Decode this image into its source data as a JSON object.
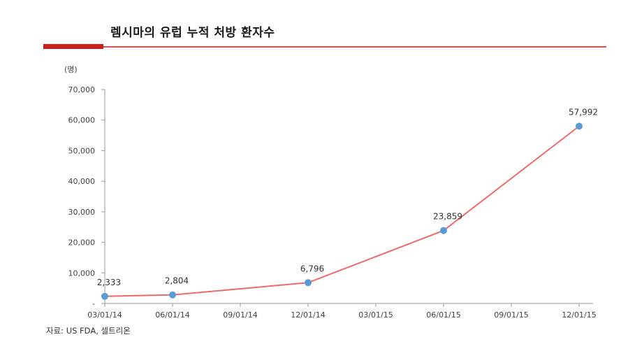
{
  "title": "렘시마의 유럽 누적 처방 환자수",
  "unit_label": "(명)",
  "source": "자료: US FDA, 셀트리온",
  "colors": {
    "line": "#f06a6a",
    "marker": "#5b9bd5",
    "title_rule": "#c9201c"
  },
  "chart_data": {
    "type": "line",
    "title": "렘시마의 유럽 누적 처방 환자수",
    "xlabel": "",
    "ylabel": "(명)",
    "categories": [
      "03/01/14",
      "06/01/14",
      "09/01/14",
      "12/01/14",
      "03/01/15",
      "06/01/15",
      "09/01/15",
      "12/01/15"
    ],
    "x_tick_labels": [
      "03/01/14",
      "06/01/14",
      "09/01/14",
      "12/01/14",
      "03/01/15",
      "06/01/15",
      "09/01/15",
      "12/01/15"
    ],
    "y_tick_labels": [
      "-",
      "10,000",
      "20,000",
      "30,000",
      "40,000",
      "50,000",
      "60,000",
      "70,000"
    ],
    "ylim": [
      0,
      70000
    ],
    "grid": false,
    "legend": "none",
    "series": [
      {
        "points": [
          {
            "x": "03/01/14",
            "y": 2333,
            "label": "2,333"
          },
          {
            "x": "06/01/14",
            "y": 2804,
            "label": "2,804"
          },
          {
            "x": "12/01/14",
            "y": 6796,
            "label": "6,796"
          },
          {
            "x": "06/01/15",
            "y": 23859,
            "label": "23,859"
          },
          {
            "x": "12/01/15",
            "y": 57992,
            "label": "57,992"
          }
        ]
      }
    ]
  }
}
